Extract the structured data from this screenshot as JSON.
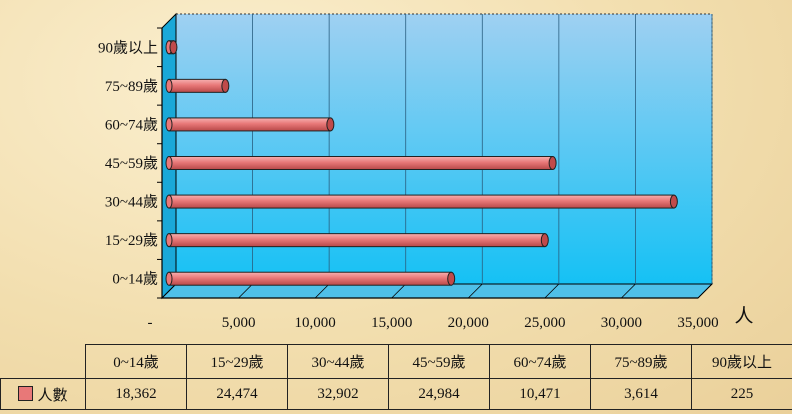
{
  "chart_data": {
    "type": "bar",
    "orientation": "horizontal",
    "categories": [
      "0~14歲",
      "15~29歲",
      "30~44歲",
      "45~59歲",
      "60~74歲",
      "75~89歲",
      "90歲以上"
    ],
    "series": [
      {
        "name": "人數",
        "values": [
          18362,
          24474,
          32902,
          24984,
          10471,
          3614,
          225
        ],
        "color": "#e87878"
      }
    ],
    "x_tick_labels": [
      "-",
      "5,000",
      "10,000",
      "15,000",
      "20,000",
      "25,000",
      "30,000",
      "35,000"
    ],
    "xlim": [
      0,
      35000
    ],
    "unit_label": "人",
    "grid": true,
    "legend": "data-table",
    "plot_background": "#33c4f2"
  },
  "table": {
    "series_label": "人數",
    "headers": [
      "0~14歲",
      "15~29歲",
      "30~44歲",
      "45~59歲",
      "60~74歲",
      "75~89歲",
      "90歲以上"
    ],
    "values": [
      "18,362",
      "24,474",
      "32,902",
      "24,984",
      "10,471",
      "3,614",
      "225"
    ]
  }
}
